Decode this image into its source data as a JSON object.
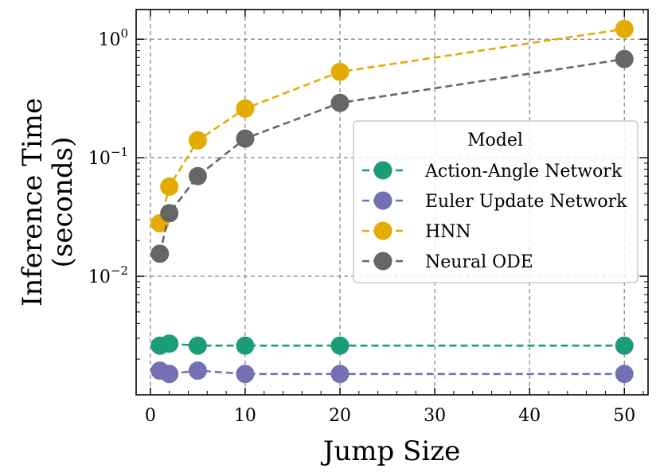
{
  "chart_data": {
    "type": "line",
    "title": "",
    "xlabel": "Jump Size",
    "ylabel_line1": "Inference Time",
    "ylabel_line2": "(seconds)",
    "yscale": "log",
    "xlim": [
      -1.5,
      52.5
    ],
    "ylim_log10": [
      -3.0,
      0.25
    ],
    "x_ticks": [
      0,
      10,
      20,
      30,
      40,
      50
    ],
    "x_tick_labels": [
      "0",
      "10",
      "20",
      "30",
      "40",
      "50"
    ],
    "y_ticks": [
      1,
      0.1,
      0.01
    ],
    "y_tick_labels": [
      {
        "base": "10",
        "exp": "0"
      },
      {
        "base": "10",
        "exp": "−1"
      },
      {
        "base": "10",
        "exp": "−2"
      }
    ],
    "grid": true,
    "legend": {
      "title": "Model",
      "placement": "center-right"
    },
    "series": [
      {
        "name": "Action-Angle Network",
        "color": "#1b9e77",
        "x": [
          1,
          2,
          5,
          10,
          20,
          50
        ],
        "values": [
          0.0026,
          0.0027,
          0.0026,
          0.0026,
          0.0026,
          0.0026
        ]
      },
      {
        "name": "Euler Update Network",
        "color": "#7570b3",
        "x": [
          1,
          2,
          5,
          10,
          20,
          50
        ],
        "values": [
          0.0016,
          0.0015,
          0.0016,
          0.0015,
          0.0015,
          0.0015
        ]
      },
      {
        "name": "HNN",
        "color": "#e6ab02",
        "x": [
          1,
          2,
          5,
          10,
          20,
          50
        ],
        "values": [
          0.028,
          0.057,
          0.14,
          0.26,
          0.53,
          1.22
        ]
      },
      {
        "name": "Neural ODE",
        "color": "#666666",
        "x": [
          1,
          2,
          5,
          10,
          20,
          50
        ],
        "values": [
          0.0155,
          0.034,
          0.07,
          0.145,
          0.29,
          0.68
        ]
      }
    ]
  }
}
